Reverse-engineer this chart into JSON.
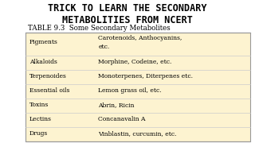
{
  "title_line1": "TRICK TO LEARN THE SECONDARY",
  "title_line2": "METABOLITIES FROM NCERT",
  "table_title": "TABLE 9.3  Some Secondary Metabolites",
  "rows": [
    [
      "Pigments",
      "Carotenoids, Anthocyanins,\netc."
    ],
    [
      "Alkaloids",
      "Morphine, Codeine, etc."
    ],
    [
      "Terpenoides",
      "Monoterpenes, Diterpenes etc."
    ],
    [
      "Essential oils",
      "Lemon grass oil, etc."
    ],
    [
      "Toxins",
      "Abrin, Ricin"
    ],
    [
      "Lectins",
      "Concanavalin A"
    ],
    [
      "Drugs",
      "Vinblastin, curcumin, etc."
    ]
  ],
  "bg_color": "#ffffff",
  "table_bg": "#fdf3d0",
  "title_color": "#000000",
  "title_font": "monospace",
  "title_fontsize": 8.5,
  "table_title_fontsize": 6.2,
  "cell_fontsize": 5.5,
  "table_border_color": "#999999",
  "row_line_color": "#cccccc"
}
